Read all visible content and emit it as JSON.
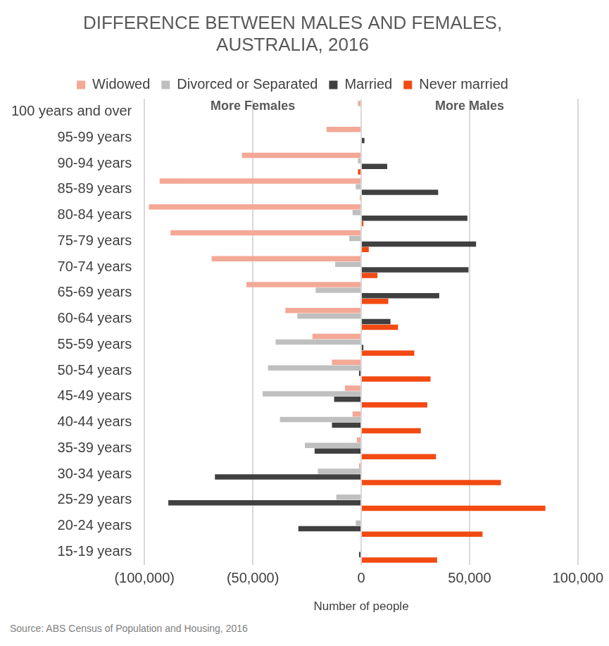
{
  "chart_data": {
    "type": "bar",
    "orientation": "horizontal",
    "title": [
      "DIFFERENCE BETWEEN MALES AND FEMALES,",
      "AUSTRALIA, 2016"
    ],
    "x_label": "Number of people",
    "annotations": [
      "More Females",
      "More Males"
    ],
    "note": "Source: ABS Census of Population and Housing, 2016",
    "categories": [
      "100 years and over",
      "95-99 years",
      "90-94 years",
      "85-89 years",
      "80-84 years",
      "75-79 years",
      "70-74 years",
      "65-69 years",
      "60-64 years",
      "55-59 years",
      "50-54 years",
      "45-49 years",
      "40-44 years",
      "35-39 years",
      "30-34 years",
      "25-29 years",
      "20-24 years",
      "15-19 years"
    ],
    "series": [
      {
        "name": "Widowed",
        "color": "#f4a896",
        "values": [
          -1500,
          -16000,
          -55000,
          -93000,
          -98000,
          -88000,
          -69000,
          -53000,
          -35000,
          -22500,
          -13500,
          -7500,
          -4000,
          -2000,
          -1000,
          0,
          0,
          0
        ]
      },
      {
        "name": "Divorced or Separated",
        "color": "#bfbfbf",
        "values": [
          0,
          0,
          -1500,
          -2500,
          -4000,
          -5500,
          -12000,
          -21000,
          -29500,
          -39500,
          -43000,
          -45500,
          -37500,
          -26000,
          -20000,
          -11500,
          -2500,
          0
        ]
      },
      {
        "name": "Married",
        "color": "#404040",
        "values": [
          0,
          1500,
          12000,
          35500,
          49000,
          53000,
          49500,
          36000,
          13500,
          1000,
          -1000,
          -12500,
          -13500,
          -21500,
          -67500,
          -89000,
          -29000,
          -1000
        ]
      },
      {
        "name": "Never married",
        "color": "#f24a12",
        "values": [
          0,
          0,
          -1500,
          -500,
          1000,
          3500,
          7500,
          12500,
          17000,
          24500,
          32000,
          30500,
          27500,
          34500,
          64500,
          85000,
          56000,
          35000
        ]
      }
    ],
    "xlim": [
      -100000,
      100000
    ],
    "xticks": [
      {
        "value": -100000,
        "label": "(100,000)"
      },
      {
        "value": -50000,
        "label": "(50,000)"
      },
      0,
      {
        "value": 50000,
        "label": "50,000"
      },
      {
        "value": 100000,
        "label": "100,000"
      }
    ],
    "grid": true,
    "legend": "top",
    "data_labels": false
  }
}
